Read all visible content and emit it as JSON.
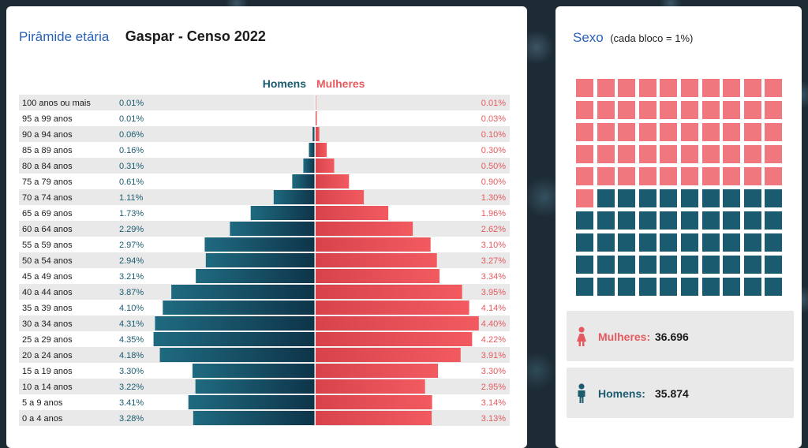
{
  "header": {
    "title": "Pirâmide etária",
    "subtitle": "Gaspar - Censo 2022"
  },
  "legend": {
    "men": "Homens",
    "women": "Mulheres"
  },
  "colors": {
    "men": "#1b5b70",
    "women": "#e45a5f",
    "title": "#2a62b8"
  },
  "chart_data": [
    {
      "type": "bar",
      "title": "Pirâmide etária",
      "subtitle": "Gaspar - Censo 2022",
      "categories": [
        "100 anos ou mais",
        "95 a 99 anos",
        "90 a 94 anos",
        "85 a 89 anos",
        "80 a 84 anos",
        "75 a 79 anos",
        "70 a 74 anos",
        "65 a 69 anos",
        "60 a 64 anos",
        "55 a 59 anos",
        "50 a 54 anos",
        "45 a 49 anos",
        "40 a 44 anos",
        "35 a 39 anos",
        "30 a 34 anos",
        "25 a 29 anos",
        "20 a 24 anos",
        "15 a 19 anos",
        "10 a 14 anos",
        "5 a 9 anos",
        "0 a 4 anos"
      ],
      "series": [
        {
          "name": "Homens",
          "values": [
            0.01,
            0.01,
            0.06,
            0.16,
            0.31,
            0.61,
            1.11,
            1.73,
            2.29,
            2.97,
            2.94,
            3.21,
            3.87,
            4.1,
            4.31,
            4.35,
            4.18,
            3.3,
            3.22,
            3.41,
            3.28
          ],
          "labels": [
            "0.01%",
            "0.01%",
            "0.06%",
            "0.16%",
            "0.31%",
            "0.61%",
            "1.11%",
            "1.73%",
            "2.29%",
            "2.97%",
            "2.94%",
            "3.21%",
            "3.87%",
            "4.10%",
            "4.31%",
            "4.35%",
            "4.18%",
            "3.30%",
            "3.22%",
            "3.41%",
            "3.28%"
          ]
        },
        {
          "name": "Mulheres",
          "values": [
            0.01,
            0.03,
            0.1,
            0.3,
            0.5,
            0.9,
            1.3,
            1.96,
            2.62,
            3.1,
            3.27,
            3.34,
            3.95,
            4.14,
            4.4,
            4.22,
            3.91,
            3.3,
            2.95,
            3.14,
            3.13
          ],
          "labels": [
            "0.01%",
            "0.03%",
            "0.10%",
            "0.30%",
            "0.50%",
            "0.90%",
            "1.30%",
            "1.96%",
            "2.62%",
            "3.10%",
            "3.27%",
            "3.34%",
            "3.95%",
            "4.14%",
            "4.40%",
            "4.22%",
            "3.91%",
            "3.30%",
            "2.95%",
            "3.14%",
            "3.13%"
          ]
        }
      ]
    },
    {
      "type": "waffle",
      "title": "Sexo",
      "subtitle": "(cada bloco = 1%)",
      "unit_percent": 1,
      "series": [
        {
          "name": "Mulheres",
          "blocks": 51
        },
        {
          "name": "Homens",
          "blocks": 49
        }
      ]
    }
  ],
  "sexo": {
    "title": "Sexo",
    "note": "(cada bloco = 1%)",
    "women": {
      "label": "Mulheres:",
      "value": "36.696",
      "icon": "female-person-icon"
    },
    "men": {
      "label": "Homens:",
      "value": "35.874",
      "icon": "male-person-icon"
    }
  }
}
